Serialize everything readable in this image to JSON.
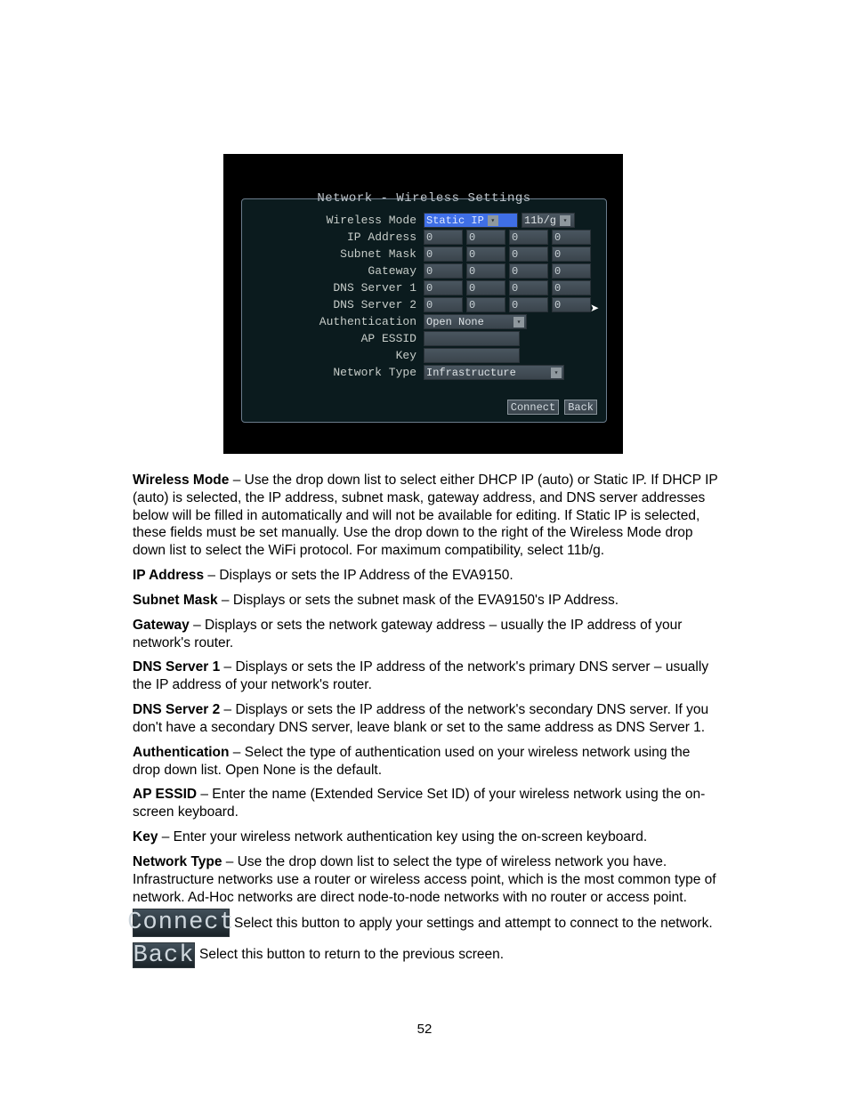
{
  "screenshot": {
    "title": "Network - Wireless Settings",
    "rows": [
      {
        "label": "Wireless Mode",
        "type": "mode",
        "mode_value": "Static IP",
        "proto_value": "11b/g"
      },
      {
        "label": "IP Address",
        "type": "ip",
        "octets": [
          "0",
          "0",
          "0",
          "0"
        ]
      },
      {
        "label": "Subnet Mask",
        "type": "ip",
        "octets": [
          "0",
          "0",
          "0",
          "0"
        ]
      },
      {
        "label": "Gateway",
        "type": "ip",
        "octets": [
          "0",
          "0",
          "0",
          "0"
        ]
      },
      {
        "label": "DNS Server 1",
        "type": "ip",
        "octets": [
          "0",
          "0",
          "0",
          "0"
        ]
      },
      {
        "label": "DNS Server 2",
        "type": "ip",
        "octets": [
          "0",
          "0",
          "0",
          "0"
        ]
      },
      {
        "label": "Authentication",
        "type": "select",
        "value": "Open None"
      },
      {
        "label": "AP ESSID",
        "type": "text"
      },
      {
        "label": "Key",
        "type": "text"
      },
      {
        "label": "Network Type",
        "type": "select",
        "value": "Infrastructure"
      }
    ],
    "buttons": {
      "connect": "Connect",
      "back": "Back"
    }
  },
  "text": {
    "wireless_mode_label": "Wireless Mode",
    "wireless_mode_body": " – Use the drop down list to select either DHCP IP (auto) or Static IP. If DHCP IP (auto) is selected, the IP address, subnet mask, gateway address, and DNS server addresses below will be filled in automatically and will not be available for editing. If Static IP is selected, these fields must be set manually. Use the drop down to the right of the Wireless Mode drop down list to select the WiFi protocol. For maximum compatibility, select 11b/g.",
    "ip_label": "IP Address",
    "ip_body": " – Displays or sets the IP Address of the EVA9150.",
    "subnet_label": "Subnet Mask",
    "subnet_body": " – Displays or sets the subnet mask of the EVA9150's IP Address.",
    "gateway_label": "Gateway",
    "gateway_body": " – Displays or sets the network gateway address – usually the IP address of your network's router.",
    "dns1_label": "DNS Server 1",
    "dns1_body": " – Displays or sets the IP address of the network's primary DNS server – usually the IP address of your network's router.",
    "dns2_label": "DNS Server 2",
    "dns2_body": " – Displays or sets the IP address of the network's secondary DNS server. If you don't have a secondary DNS server, leave blank or set to the same address as DNS Server 1.",
    "auth_label": "Authentication",
    "auth_body": " – Select the type of authentication used on your wireless network using the drop down list. Open None is the default.",
    "essid_label": "AP ESSID",
    "essid_body": " – Enter the name (Extended Service Set ID) of your wireless network using the on-screen keyboard.",
    "key_label": "Key",
    "key_body": " – Enter your wireless network authentication key using the on-screen keyboard.",
    "ntype_label": "Network Type",
    "ntype_body": " – Use the drop down list to select the type of wireless network you have. Infrastructure networks use a router or wireless access point, which is the most common type of network. Ad-Hoc networks are direct node-to-node networks with no router or access point."
  },
  "imgbuttons": {
    "connect": "Connect",
    "connect_desc": "Select this button to apply your settings and attempt to connect to the network.",
    "back": "Back",
    "back_desc": "Select this button to return to the previous screen."
  },
  "page_number": "52"
}
